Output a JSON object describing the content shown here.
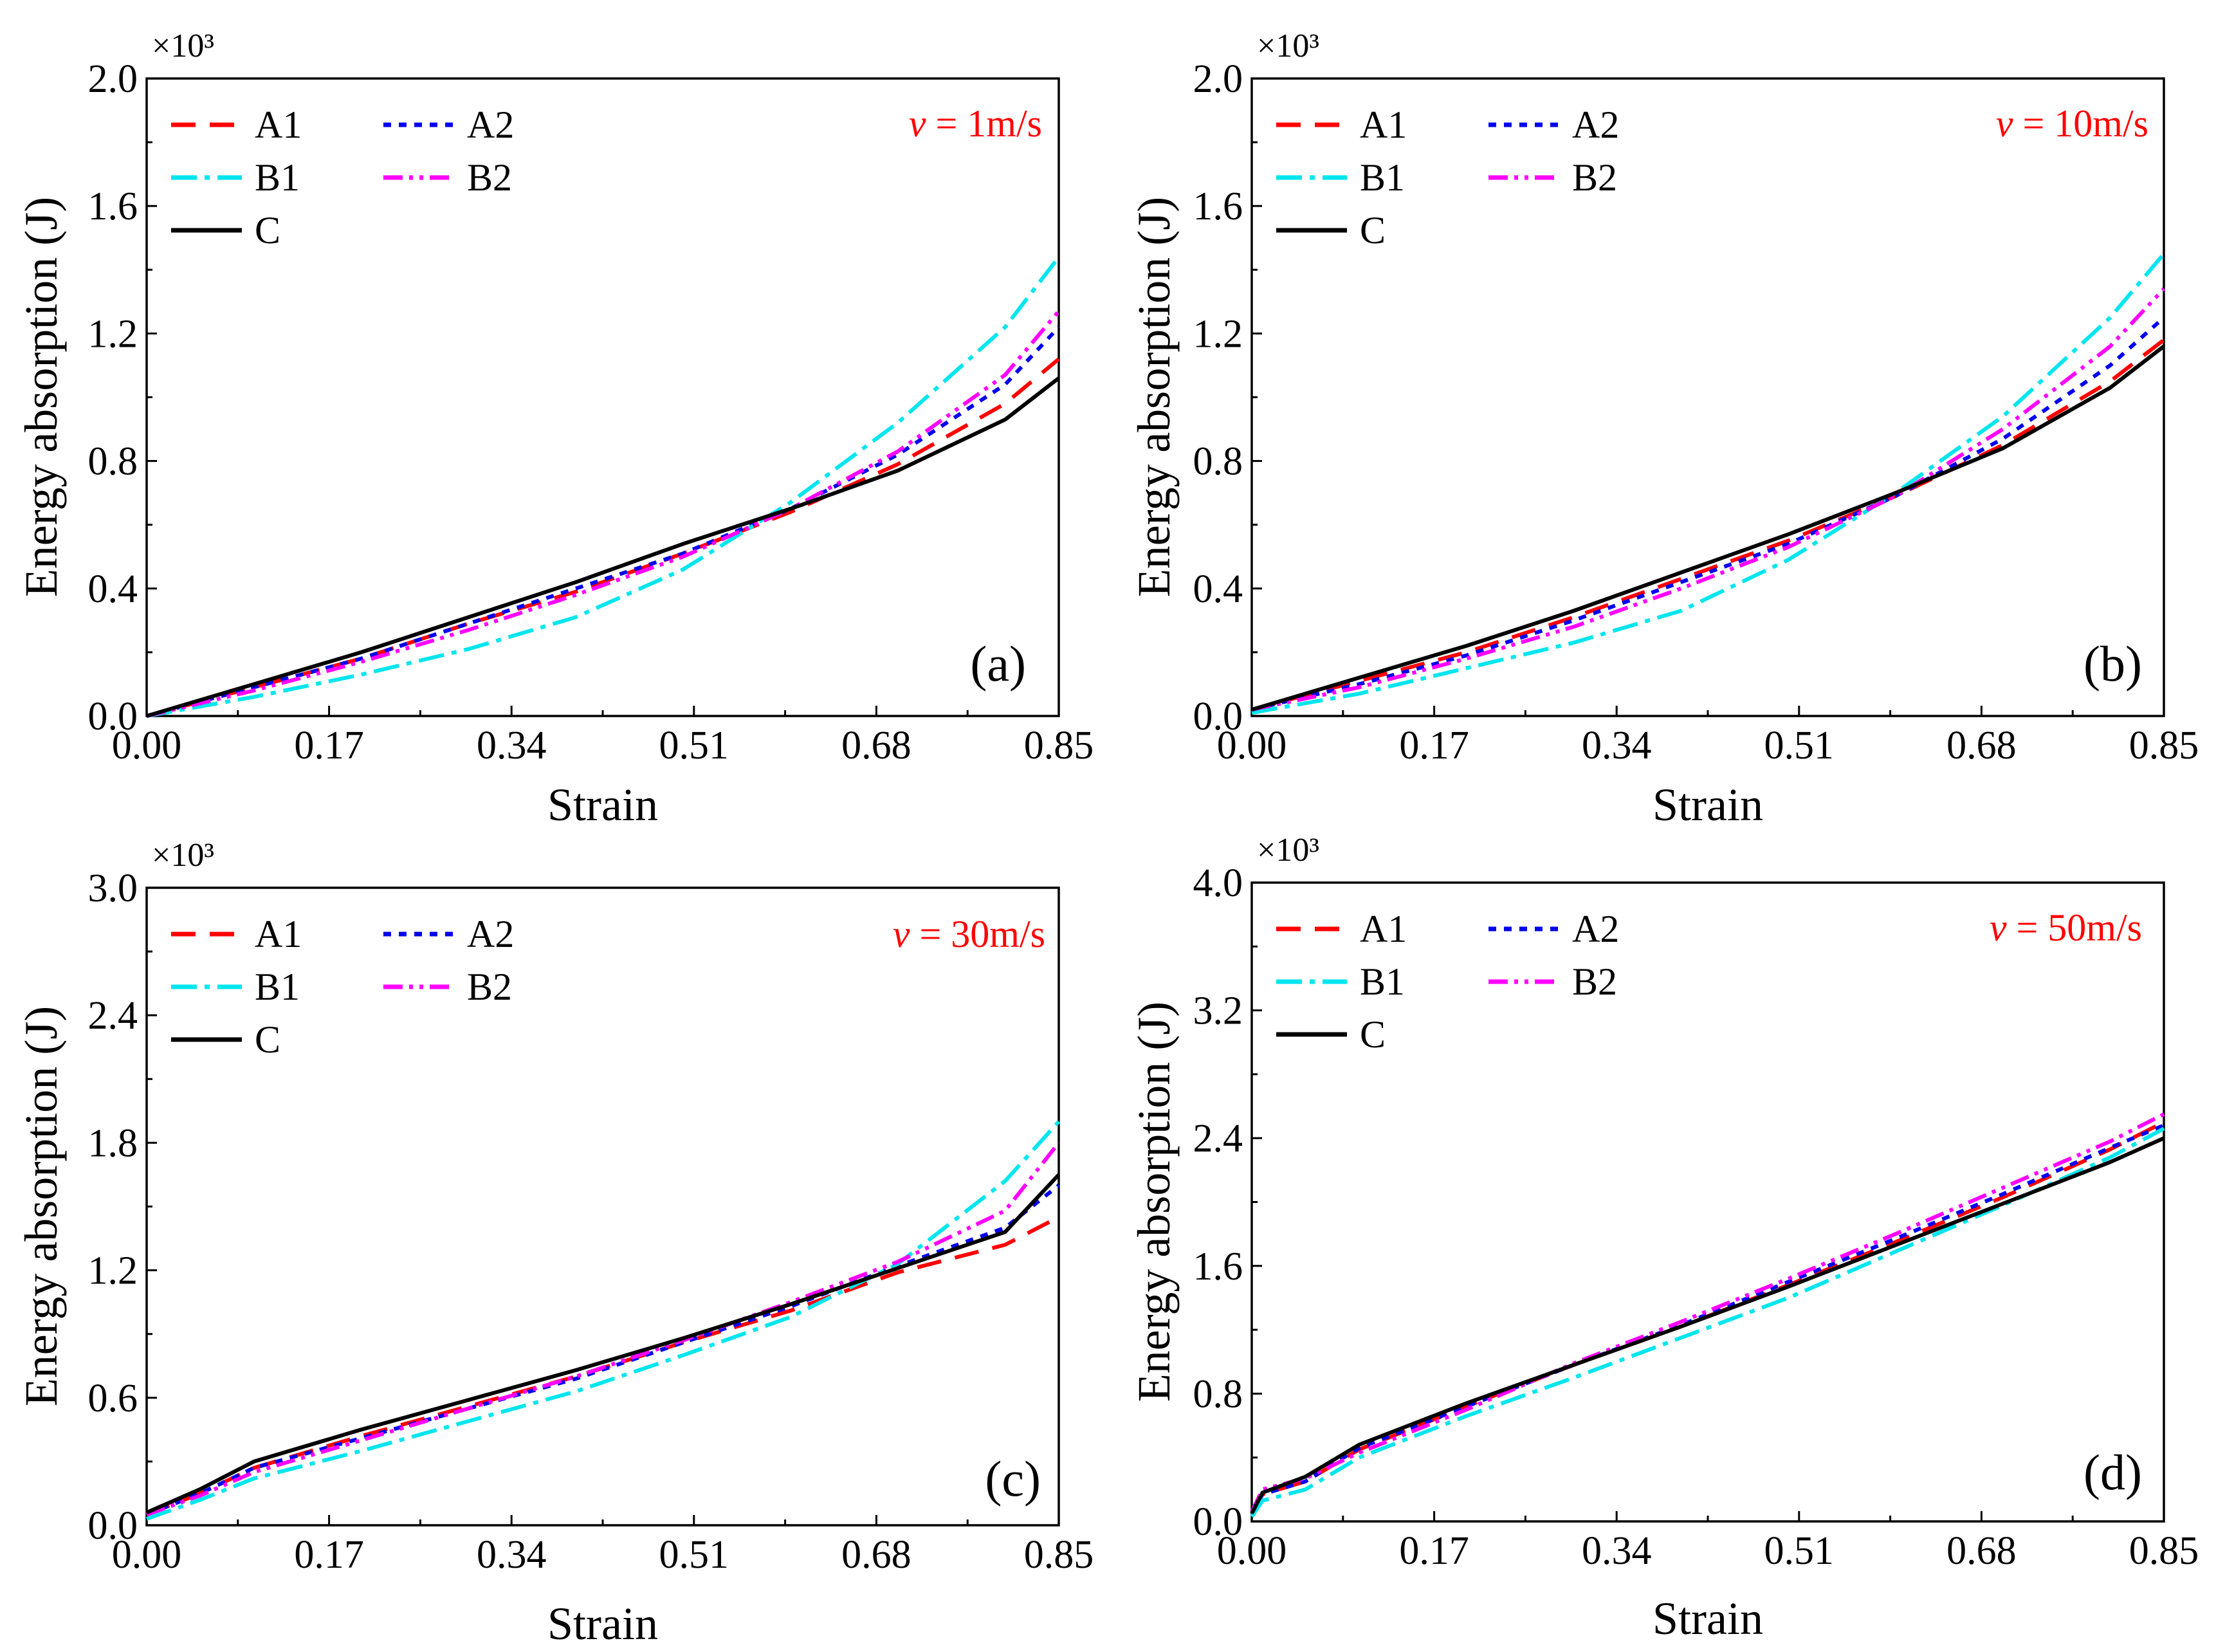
{
  "chart_data": [
    {
      "type": "line",
      "panel_label": "(a)",
      "speed_prefix": "v",
      "speed_text": " = 1m/s",
      "scale_label": "×10³",
      "xlabel": "Strain",
      "ylabel": "Energy absorption (J)",
      "xlim": [
        0,
        0.85
      ],
      "ylim": [
        0,
        2.0
      ],
      "x_ticks": [
        "0.00",
        "0.17",
        "0.34",
        "0.51",
        "0.68",
        "0.85"
      ],
      "y_ticks": [
        "0.0",
        "0.4",
        "0.8",
        "1.2",
        "1.6",
        "2.0"
      ],
      "legend_position": "top-left",
      "series": [
        {
          "name": "A1",
          "color": "#ff0000",
          "dash": "long-dash",
          "points": [
            [
              0,
              0
            ],
            [
              0.1,
              0.09
            ],
            [
              0.2,
              0.18
            ],
            [
              0.3,
              0.29
            ],
            [
              0.4,
              0.39
            ],
            [
              0.5,
              0.51
            ],
            [
              0.6,
              0.64
            ],
            [
              0.7,
              0.79
            ],
            [
              0.8,
              0.98
            ],
            [
              0.85,
              1.12
            ]
          ]
        },
        {
          "name": "A2",
          "color": "#0000ee",
          "dash": "short-dash",
          "points": [
            [
              0,
              0
            ],
            [
              0.1,
              0.09
            ],
            [
              0.2,
              0.18
            ],
            [
              0.3,
              0.29
            ],
            [
              0.4,
              0.4
            ],
            [
              0.5,
              0.51
            ],
            [
              0.6,
              0.65
            ],
            [
              0.7,
              0.82
            ],
            [
              0.8,
              1.04
            ],
            [
              0.85,
              1.22
            ]
          ]
        },
        {
          "name": "B1",
          "color": "#00e5ee",
          "dash": "dash-dot",
          "points": [
            [
              0,
              0
            ],
            [
              0.1,
              0.06
            ],
            [
              0.2,
              0.13
            ],
            [
              0.3,
              0.21
            ],
            [
              0.4,
              0.31
            ],
            [
              0.5,
              0.46
            ],
            [
              0.6,
              0.67
            ],
            [
              0.7,
              0.92
            ],
            [
              0.8,
              1.22
            ],
            [
              0.85,
              1.44
            ]
          ]
        },
        {
          "name": "B2",
          "color": "#ff00ff",
          "dash": "dash-dot-dot",
          "points": [
            [
              0,
              0
            ],
            [
              0.1,
              0.08
            ],
            [
              0.2,
              0.17
            ],
            [
              0.3,
              0.27
            ],
            [
              0.4,
              0.38
            ],
            [
              0.5,
              0.5
            ],
            [
              0.6,
              0.65
            ],
            [
              0.7,
              0.83
            ],
            [
              0.8,
              1.07
            ],
            [
              0.85,
              1.27
            ]
          ]
        },
        {
          "name": "C",
          "color": "#000000",
          "dash": "solid",
          "points": [
            [
              0,
              0
            ],
            [
              0.1,
              0.1
            ],
            [
              0.2,
              0.2
            ],
            [
              0.3,
              0.31
            ],
            [
              0.4,
              0.42
            ],
            [
              0.5,
              0.54
            ],
            [
              0.6,
              0.65
            ],
            [
              0.7,
              0.77
            ],
            [
              0.8,
              0.93
            ],
            [
              0.85,
              1.06
            ]
          ]
        }
      ]
    },
    {
      "type": "line",
      "panel_label": "(b)",
      "speed_prefix": "v",
      "speed_text": " = 10m/s",
      "scale_label": "×10³",
      "xlabel": "Strain",
      "ylabel": "Energy absorption (J)",
      "xlim": [
        0,
        0.85
      ],
      "ylim": [
        0,
        2.0
      ],
      "x_ticks": [
        "0.00",
        "0.17",
        "0.34",
        "0.51",
        "0.68",
        "0.85"
      ],
      "y_ticks": [
        "0.0",
        "0.4",
        "0.8",
        "1.2",
        "1.6",
        "2.0"
      ],
      "legend_position": "top-left",
      "series": [
        {
          "name": "A1",
          "color": "#ff0000",
          "dash": "long-dash",
          "points": [
            [
              0,
              0.02
            ],
            [
              0.1,
              0.11
            ],
            [
              0.2,
              0.2
            ],
            [
              0.3,
              0.31
            ],
            [
              0.4,
              0.43
            ],
            [
              0.5,
              0.55
            ],
            [
              0.6,
              0.69
            ],
            [
              0.7,
              0.85
            ],
            [
              0.8,
              1.05
            ],
            [
              0.85,
              1.18
            ]
          ]
        },
        {
          "name": "A2",
          "color": "#0000ee",
          "dash": "short-dash",
          "points": [
            [
              0,
              0.02
            ],
            [
              0.1,
              0.1
            ],
            [
              0.2,
              0.19
            ],
            [
              0.3,
              0.3
            ],
            [
              0.4,
              0.42
            ],
            [
              0.5,
              0.54
            ],
            [
              0.6,
              0.69
            ],
            [
              0.7,
              0.87
            ],
            [
              0.8,
              1.1
            ],
            [
              0.85,
              1.25
            ]
          ]
        },
        {
          "name": "B1",
          "color": "#00e5ee",
          "dash": "dash-dot",
          "points": [
            [
              0,
              0.01
            ],
            [
              0.1,
              0.07
            ],
            [
              0.2,
              0.15
            ],
            [
              0.3,
              0.23
            ],
            [
              0.4,
              0.33
            ],
            [
              0.5,
              0.49
            ],
            [
              0.6,
              0.7
            ],
            [
              0.7,
              0.94
            ],
            [
              0.8,
              1.25
            ],
            [
              0.85,
              1.45
            ]
          ]
        },
        {
          "name": "B2",
          "color": "#ff00ff",
          "dash": "dash-dot-dot",
          "points": [
            [
              0,
              0.02
            ],
            [
              0.1,
              0.09
            ],
            [
              0.2,
              0.18
            ],
            [
              0.3,
              0.28
            ],
            [
              0.4,
              0.4
            ],
            [
              0.5,
              0.53
            ],
            [
              0.6,
              0.69
            ],
            [
              0.7,
              0.9
            ],
            [
              0.8,
              1.16
            ],
            [
              0.85,
              1.34
            ]
          ]
        },
        {
          "name": "C",
          "color": "#000000",
          "dash": "solid",
          "points": [
            [
              0,
              0.02
            ],
            [
              0.1,
              0.12
            ],
            [
              0.2,
              0.22
            ],
            [
              0.3,
              0.33
            ],
            [
              0.4,
              0.45
            ],
            [
              0.5,
              0.57
            ],
            [
              0.6,
              0.7
            ],
            [
              0.7,
              0.84
            ],
            [
              0.8,
              1.03
            ],
            [
              0.85,
              1.16
            ]
          ]
        }
      ]
    },
    {
      "type": "line",
      "panel_label": "(c)",
      "speed_prefix": "v",
      "speed_text": " = 30m/s",
      "scale_label": "×10³",
      "xlabel": "Strain",
      "ylabel": "Energy absorption (J)",
      "xlim": [
        0,
        0.85
      ],
      "ylim": [
        0,
        3.0
      ],
      "x_ticks": [
        "0.00",
        "0.17",
        "0.34",
        "0.51",
        "0.68",
        "0.85"
      ],
      "y_ticks": [
        "0.0",
        "0.6",
        "1.2",
        "1.8",
        "2.4",
        "3.0"
      ],
      "legend_position": "top-left",
      "series": [
        {
          "name": "A1",
          "color": "#ff0000",
          "dash": "long-dash",
          "points": [
            [
              0,
              0.05
            ],
            [
              0.05,
              0.15
            ],
            [
              0.1,
              0.27
            ],
            [
              0.2,
              0.42
            ],
            [
              0.3,
              0.56
            ],
            [
              0.4,
              0.7
            ],
            [
              0.5,
              0.86
            ],
            [
              0.6,
              1.01
            ],
            [
              0.7,
              1.19
            ],
            [
              0.8,
              1.32
            ],
            [
              0.85,
              1.45
            ]
          ]
        },
        {
          "name": "A2",
          "color": "#0000ee",
          "dash": "short-dash",
          "points": [
            [
              0,
              0.05
            ],
            [
              0.05,
              0.15
            ],
            [
              0.1,
              0.27
            ],
            [
              0.2,
              0.41
            ],
            [
              0.3,
              0.55
            ],
            [
              0.4,
              0.69
            ],
            [
              0.5,
              0.86
            ],
            [
              0.6,
              1.03
            ],
            [
              0.7,
              1.22
            ],
            [
              0.8,
              1.4
            ],
            [
              0.85,
              1.6
            ]
          ]
        },
        {
          "name": "B1",
          "color": "#00e5ee",
          "dash": "dash-dot",
          "points": [
            [
              0,
              0.03
            ],
            [
              0.05,
              0.12
            ],
            [
              0.1,
              0.22
            ],
            [
              0.2,
              0.35
            ],
            [
              0.3,
              0.49
            ],
            [
              0.4,
              0.63
            ],
            [
              0.5,
              0.8
            ],
            [
              0.6,
              0.98
            ],
            [
              0.7,
              1.23
            ],
            [
              0.8,
              1.62
            ],
            [
              0.85,
              1.9
            ]
          ]
        },
        {
          "name": "B2",
          "color": "#ff00ff",
          "dash": "dash-dot-dot",
          "points": [
            [
              0,
              0.05
            ],
            [
              0.05,
              0.14
            ],
            [
              0.1,
              0.25
            ],
            [
              0.2,
              0.4
            ],
            [
              0.3,
              0.55
            ],
            [
              0.4,
              0.7
            ],
            [
              0.5,
              0.87
            ],
            [
              0.6,
              1.05
            ],
            [
              0.7,
              1.24
            ],
            [
              0.8,
              1.48
            ],
            [
              0.85,
              1.8
            ]
          ]
        },
        {
          "name": "C",
          "color": "#000000",
          "dash": "solid",
          "points": [
            [
              0,
              0.06
            ],
            [
              0.05,
              0.17
            ],
            [
              0.1,
              0.3
            ],
            [
              0.2,
              0.45
            ],
            [
              0.3,
              0.59
            ],
            [
              0.4,
              0.73
            ],
            [
              0.5,
              0.88
            ],
            [
              0.6,
              1.04
            ],
            [
              0.7,
              1.21
            ],
            [
              0.8,
              1.38
            ],
            [
              0.85,
              1.65
            ]
          ]
        }
      ]
    },
    {
      "type": "line",
      "panel_label": "(d)",
      "speed_prefix": "v",
      "speed_text": " = 50m/s",
      "scale_label": "×10³",
      "xlabel": "Strain",
      "ylabel": "Energy absorption (J)",
      "xlim": [
        0,
        0.85
      ],
      "ylim": [
        0,
        4.0
      ],
      "x_ticks": [
        "0.00",
        "0.17",
        "0.34",
        "0.51",
        "0.68",
        "0.85"
      ],
      "y_ticks": [
        "0.0",
        "0.8",
        "1.6",
        "2.4",
        "3.2",
        "4.0"
      ],
      "legend_position": "top-left",
      "series": [
        {
          "name": "A1",
          "color": "#ff0000",
          "dash": "long-dash",
          "points": [
            [
              0,
              0.05
            ],
            [
              0.01,
              0.17
            ],
            [
              0.05,
              0.25
            ],
            [
              0.1,
              0.45
            ],
            [
              0.2,
              0.72
            ],
            [
              0.3,
              0.98
            ],
            [
              0.4,
              1.22
            ],
            [
              0.5,
              1.48
            ],
            [
              0.6,
              1.75
            ],
            [
              0.7,
              2.03
            ],
            [
              0.8,
              2.33
            ],
            [
              0.85,
              2.5
            ]
          ]
        },
        {
          "name": "A2",
          "color": "#0000ee",
          "dash": "short-dash",
          "points": [
            [
              0,
              0.05
            ],
            [
              0.01,
              0.17
            ],
            [
              0.05,
              0.25
            ],
            [
              0.1,
              0.46
            ],
            [
              0.2,
              0.72
            ],
            [
              0.3,
              0.98
            ],
            [
              0.4,
              1.23
            ],
            [
              0.5,
              1.5
            ],
            [
              0.6,
              1.77
            ],
            [
              0.7,
              2.05
            ],
            [
              0.8,
              2.34
            ],
            [
              0.85,
              2.48
            ]
          ]
        },
        {
          "name": "B1",
          "color": "#00e5ee",
          "dash": "dash-dot",
          "points": [
            [
              0,
              0.03
            ],
            [
              0.01,
              0.13
            ],
            [
              0.05,
              0.2
            ],
            [
              0.1,
              0.4
            ],
            [
              0.2,
              0.66
            ],
            [
              0.3,
              0.9
            ],
            [
              0.4,
              1.15
            ],
            [
              0.5,
              1.4
            ],
            [
              0.6,
              1.69
            ],
            [
              0.7,
              1.98
            ],
            [
              0.8,
              2.28
            ],
            [
              0.85,
              2.46
            ]
          ]
        },
        {
          "name": "B2",
          "color": "#ff00ff",
          "dash": "dash-dot-dot",
          "points": [
            [
              0,
              0.06
            ],
            [
              0.01,
              0.2
            ],
            [
              0.05,
              0.27
            ],
            [
              0.1,
              0.43
            ],
            [
              0.2,
              0.7
            ],
            [
              0.3,
              0.99
            ],
            [
              0.4,
              1.25
            ],
            [
              0.5,
              1.52
            ],
            [
              0.6,
              1.8
            ],
            [
              0.7,
              2.09
            ],
            [
              0.8,
              2.38
            ],
            [
              0.85,
              2.55
            ]
          ]
        },
        {
          "name": "C",
          "color": "#000000",
          "dash": "solid",
          "points": [
            [
              0,
              0.05
            ],
            [
              0.01,
              0.18
            ],
            [
              0.05,
              0.28
            ],
            [
              0.1,
              0.48
            ],
            [
              0.2,
              0.74
            ],
            [
              0.3,
              0.98
            ],
            [
              0.4,
              1.22
            ],
            [
              0.5,
              1.47
            ],
            [
              0.6,
              1.73
            ],
            [
              0.7,
              1.99
            ],
            [
              0.8,
              2.25
            ],
            [
              0.85,
              2.4
            ]
          ]
        }
      ]
    }
  ]
}
